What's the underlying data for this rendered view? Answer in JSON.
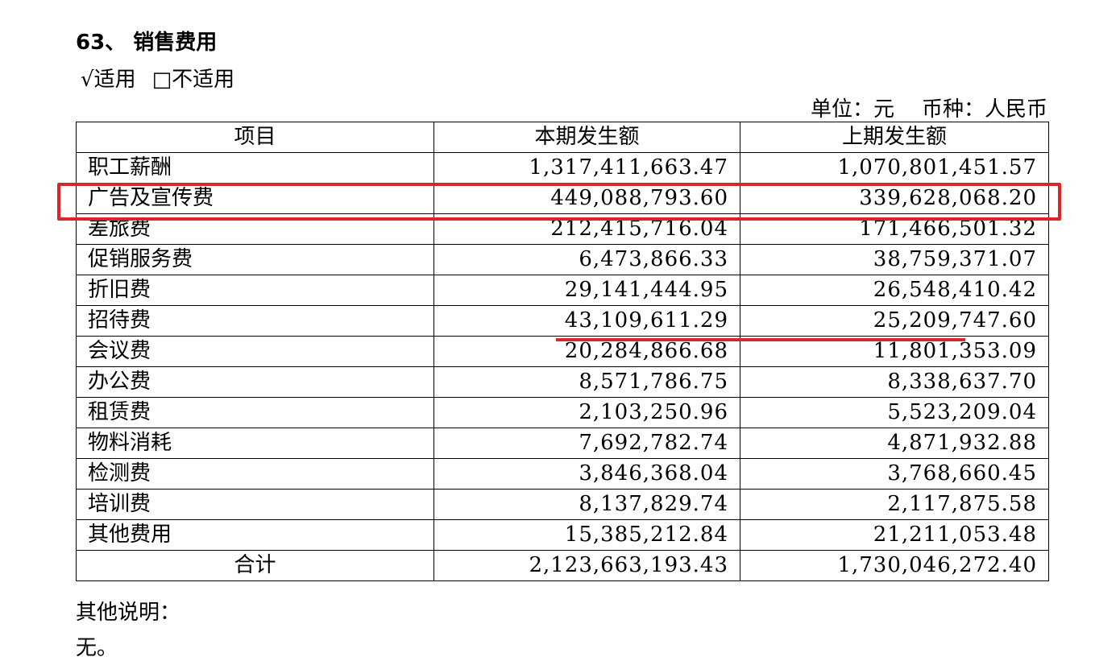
{
  "header": {
    "title": "63、 销售费用",
    "applicable": "√适用",
    "not_applicable": "□不适用",
    "unit": "单位：元",
    "currency": "币种：人民币"
  },
  "table": {
    "columns": [
      "项目",
      "本期发生额",
      "上期发生额"
    ],
    "rows": [
      [
        "职工薪酬",
        "1,317,411,663.47",
        "1,070,801,451.57"
      ],
      [
        "广告及宣传费",
        "449,088,793.60",
        "339,628,068.20"
      ],
      [
        "差旅费",
        "212,415,716.04",
        "171,466,501.32"
      ],
      [
        "促销服务费",
        "6,473,866.33",
        "38,759,371.07"
      ],
      [
        "折旧费",
        "29,141,444.95",
        "26,548,410.42"
      ],
      [
        "招待费",
        "43,109,611.29",
        "25,209,747.60"
      ],
      [
        "会议费",
        "20,284,866.68",
        "11,801,353.09"
      ],
      [
        "办公费",
        "8,571,786.75",
        "8,338,637.70"
      ],
      [
        "租赁费",
        "2,103,250.96",
        "5,523,209.04"
      ],
      [
        "物料消耗",
        "7,692,782.74",
        "4,871,932.88"
      ],
      [
        "检测费",
        "3,846,368.04",
        "3,768,660.45"
      ],
      [
        "培训费",
        "8,137,829.74",
        "2,117,875.58"
      ],
      [
        "其他费用",
        "15,385,212.84",
        "21,211,053.48"
      ]
    ],
    "total": [
      "合计",
      "2,123,663,193.43",
      "1,730,046,272.40"
    ]
  },
  "footer": {
    "note_label": "其他说明：",
    "note": "无。"
  }
}
